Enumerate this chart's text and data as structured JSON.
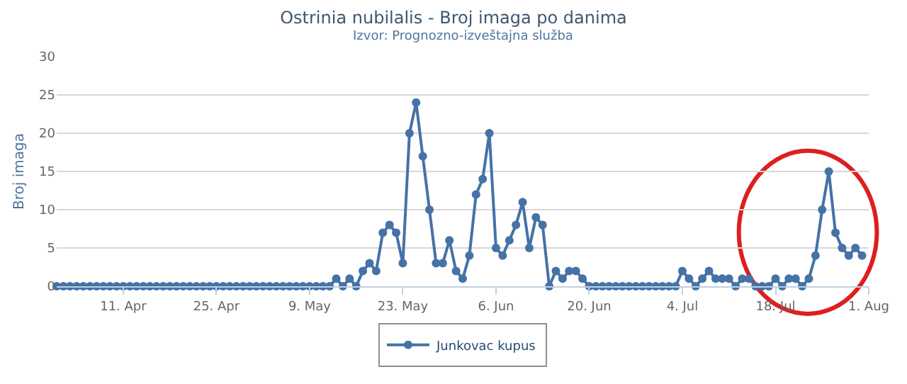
{
  "chart_data": {
    "type": "line",
    "title": "Ostrinia nubilalis - Broj imaga po danima",
    "subtitle": "Izvor: Prognozno-izveštajna služba",
    "ylabel": "Broj imaga",
    "x": [
      "--04-01",
      "--04-02",
      "--04-03",
      "--04-04",
      "--04-05",
      "--04-06",
      "--04-07",
      "--04-08",
      "--04-09",
      "--04-10",
      "--04-11",
      "--04-12",
      "--04-13",
      "--04-14",
      "--04-15",
      "--04-16",
      "--04-17",
      "--04-18",
      "--04-19",
      "--04-20",
      "--04-21",
      "--04-22",
      "--04-23",
      "--04-24",
      "--04-25",
      "--04-26",
      "--04-27",
      "--04-28",
      "--04-29",
      "--04-30",
      "--05-01",
      "--05-02",
      "--05-03",
      "--05-04",
      "--05-05",
      "--05-06",
      "--05-07",
      "--05-08",
      "--05-09",
      "--05-10",
      "--05-11",
      "--05-12",
      "--05-13",
      "--05-14",
      "--05-15",
      "--05-16",
      "--05-17",
      "--05-18",
      "--05-19",
      "--05-20",
      "--05-21",
      "--05-22",
      "--05-23",
      "--05-24",
      "--05-25",
      "--05-26",
      "--05-27",
      "--05-28",
      "--05-29",
      "--05-30",
      "--05-31",
      "--06-01",
      "--06-02",
      "--06-03",
      "--06-04",
      "--06-05",
      "--06-06",
      "--06-07",
      "--06-08",
      "--06-09",
      "--06-10",
      "--06-11",
      "--06-12",
      "--06-13",
      "--06-14",
      "--06-15",
      "--06-16",
      "--06-17",
      "--06-18",
      "--06-19",
      "--06-20",
      "--06-21",
      "--06-22",
      "--06-23",
      "--06-24",
      "--06-25",
      "--06-26",
      "--06-27",
      "--06-28",
      "--06-29",
      "--06-30",
      "--07-01",
      "--07-02",
      "--07-03",
      "--07-04",
      "--07-05",
      "--07-06",
      "--07-07",
      "--07-08",
      "--07-09",
      "--07-10",
      "--07-11",
      "--07-12",
      "--07-13",
      "--07-14",
      "--07-15",
      "--07-16",
      "--07-17",
      "--07-18",
      "--07-19",
      "--07-20",
      "--07-21",
      "--07-22",
      "--07-23",
      "--07-24",
      "--07-25",
      "--07-26",
      "--07-27",
      "--07-28",
      "--07-29",
      "--07-30",
      "--07-31"
    ],
    "series": [
      {
        "name": "Junkovac kupus",
        "color": "#4572a7",
        "values": [
          0,
          0,
          0,
          0,
          0,
          0,
          0,
          0,
          0,
          0,
          0,
          0,
          0,
          0,
          0,
          0,
          0,
          0,
          0,
          0,
          0,
          0,
          0,
          0,
          0,
          0,
          0,
          0,
          0,
          0,
          0,
          0,
          0,
          0,
          0,
          0,
          0,
          0,
          0,
          0,
          0,
          0,
          1,
          0,
          1,
          0,
          2,
          3,
          2,
          7,
          8,
          7,
          3,
          20,
          24,
          17,
          10,
          3,
          3,
          6,
          2,
          1,
          4,
          12,
          14,
          20,
          5,
          4,
          6,
          8,
          11,
          5,
          9,
          8,
          0,
          2,
          1,
          2,
          2,
          1,
          0,
          0,
          0,
          0,
          0,
          0,
          0,
          0,
          0,
          0,
          0,
          0,
          0,
          0,
          2,
          1,
          0,
          1,
          2,
          1,
          1,
          1,
          0,
          1,
          1,
          0,
          0,
          0,
          1,
          0,
          1,
          1,
          0,
          1,
          4,
          10,
          15,
          7,
          5,
          4,
          5,
          4
        ]
      }
    ],
    "xlim": [
      "--04-01",
      "--08-01"
    ],
    "xticks": [
      {
        "value": "--04-11",
        "label": "11. Apr"
      },
      {
        "value": "--04-25",
        "label": "25. Apr"
      },
      {
        "value": "--05-09",
        "label": "9. May"
      },
      {
        "value": "--05-23",
        "label": "23. May"
      },
      {
        "value": "--06-06",
        "label": "6. Jun"
      },
      {
        "value": "--06-20",
        "label": "20. Jun"
      },
      {
        "value": "--07-04",
        "label": "4. Jul"
      },
      {
        "value": "--07-18",
        "label": "18. Jul"
      },
      {
        "value": "--08-01",
        "label": "1. Aug"
      }
    ],
    "ylim": [
      0,
      30
    ],
    "yticks": [
      0,
      5,
      10,
      15,
      20,
      25,
      30
    ],
    "grid": "y",
    "legend": "bottom",
    "marker": "circle",
    "line_style": "solid"
  }
}
